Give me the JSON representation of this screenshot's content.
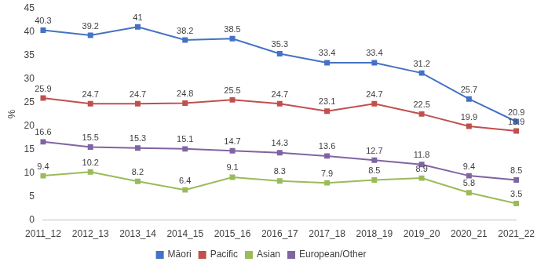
{
  "chart_data": {
    "type": "line",
    "categories": [
      "2011_12",
      "2012_13",
      "2013_14",
      "2014_15",
      "2015_16",
      "2016_17",
      "2017_18",
      "2018_19",
      "2019_20",
      "2020_21",
      "2021_22"
    ],
    "y_label": "%",
    "series": [
      {
        "name": "Māori",
        "color": "#4472c4",
        "marker": "square",
        "values": [
          40.3,
          39.2,
          41,
          38.2,
          38.5,
          35.3,
          33.4,
          33.4,
          31.2,
          25.7,
          20.9
        ]
      },
      {
        "name": "Pacific",
        "color": "#c0504d",
        "marker": "square",
        "values": [
          25.9,
          24.7,
          24.7,
          24.8,
          25.5,
          24.7,
          23.1,
          24.7,
          22.5,
          19.9,
          18.9
        ]
      },
      {
        "name": "Asian",
        "color": "#9bbb59",
        "marker": "square",
        "values": [
          9.4,
          10.2,
          8.2,
          6.4,
          9.1,
          8.3,
          7.9,
          8.5,
          8.9,
          5.8,
          3.5
        ]
      },
      {
        "name": "European/Other",
        "color": "#8064a2",
        "marker": "square",
        "values": [
          16.6,
          15.5,
          15.3,
          15.1,
          14.7,
          14.3,
          13.6,
          12.7,
          11.8,
          9.4,
          8.5
        ]
      }
    ],
    "ylim": [
      0,
      45
    ],
    "yticks": [
      0,
      5,
      10,
      15,
      20,
      25,
      30,
      35,
      40,
      45
    ],
    "grid": false,
    "legend": "bottom",
    "data_labels": true
  }
}
